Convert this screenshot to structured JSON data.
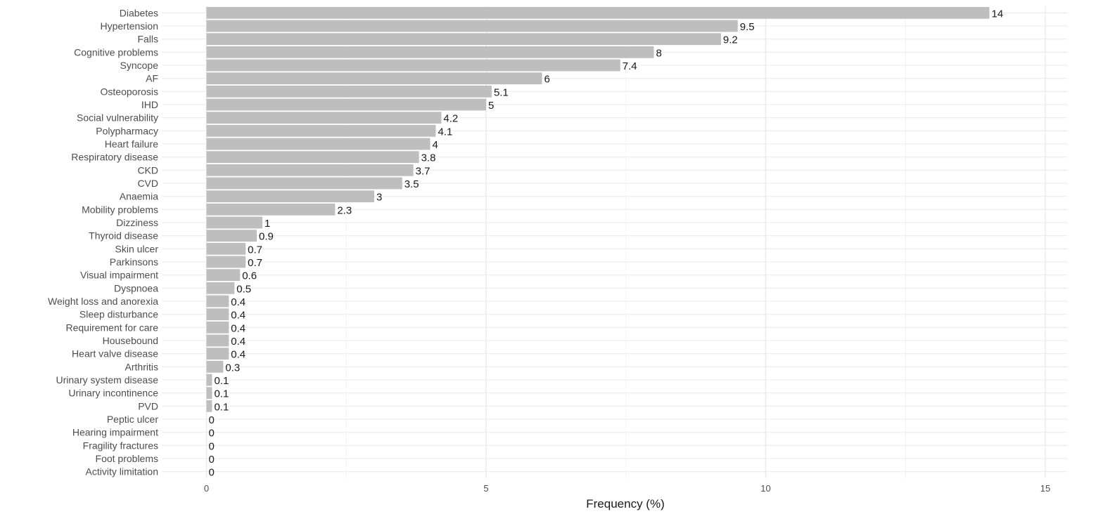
{
  "chart_data": {
    "type": "bar",
    "orientation": "horizontal",
    "categories": [
      "Diabetes",
      "Hypertension",
      "Falls",
      "Cognitive problems",
      "Syncope",
      "AF",
      "Osteoporosis",
      "IHD",
      "Social vulnerability",
      "Polypharmacy",
      "Heart failure",
      "Respiratory disease",
      "CKD",
      "CVD",
      "Anaemia",
      "Mobility problems",
      "Dizziness",
      "Thyroid disease",
      "Skin ulcer",
      "Parkinsons",
      "Visual impairment",
      "Dyspnoea",
      "Weight loss and anorexia",
      "Sleep disturbance",
      "Requirement for care",
      "Housebound",
      "Heart valve disease",
      "Arthritis",
      "Urinary system disease",
      "Urinary incontinence",
      "PVD",
      "Peptic ulcer",
      "Hearing impairment",
      "Fragility fractures",
      "Foot problems",
      "Activity limitation"
    ],
    "values": [
      14,
      9.5,
      9.2,
      8,
      7.4,
      6,
      5.1,
      5,
      4.2,
      4.1,
      4,
      3.8,
      3.7,
      3.5,
      3,
      2.3,
      1,
      0.9,
      0.7,
      0.7,
      0.6,
      0.5,
      0.4,
      0.4,
      0.4,
      0.4,
      0.4,
      0.3,
      0.1,
      0.1,
      0.1,
      0,
      0,
      0,
      0,
      0
    ],
    "value_labels": [
      "14",
      "9.5",
      "9.2",
      "8",
      "7.4",
      "6",
      "5.1",
      "5",
      "4.2",
      "4.1",
      "4",
      "3.8",
      "3.7",
      "3.5",
      "3",
      "2.3",
      "1",
      "0.9",
      "0.7",
      "0.7",
      "0.6",
      "0.5",
      "0.4",
      "0.4",
      "0.4",
      "0.4",
      "0.4",
      "0.3",
      "0.1",
      "0.1",
      "0.1",
      "0",
      "0",
      "0",
      "0",
      "0"
    ],
    "xlabel": "Frequency (%)",
    "ylabel": "",
    "xlim": [
      -0.8,
      15.8
    ],
    "xticks": [
      0,
      5,
      10,
      15
    ],
    "xtick_labels": [
      "0",
      "5",
      "10",
      "15"
    ],
    "minor_gridlines": [
      2.5,
      7.5,
      12.5
    ],
    "grid": true,
    "bar_color": "#bebebe",
    "grid_color": "#ebebeb"
  }
}
